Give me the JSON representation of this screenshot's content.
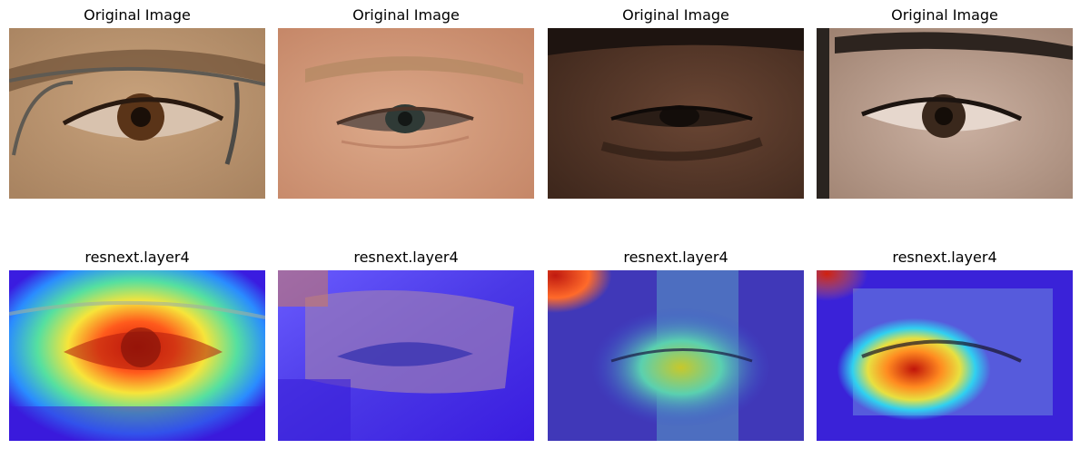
{
  "figure": {
    "original_title": "Original Image",
    "heatmap_title": "resnext.layer4",
    "panels": [
      {
        "row": "original",
        "title": "Original Image",
        "skin": "#b89670",
        "iris": "#4a2c17"
      },
      {
        "row": "original",
        "title": "Original Image",
        "skin": "#d7a081",
        "iris": "#3e4a46"
      },
      {
        "row": "original",
        "title": "Original Image",
        "skin": "#5b3b2a",
        "iris": "#1a1411"
      },
      {
        "row": "original",
        "title": "Original Image",
        "skin": "#c0a697",
        "iris": "#3a281c"
      },
      {
        "row": "heatmap",
        "title": "resnext.layer4",
        "colormap": "jet"
      },
      {
        "row": "heatmap",
        "title": "resnext.layer4",
        "colormap": "jet"
      },
      {
        "row": "heatmap",
        "title": "resnext.layer4",
        "colormap": "jet"
      },
      {
        "row": "heatmap",
        "title": "resnext.layer4",
        "colormap": "jet"
      }
    ]
  }
}
